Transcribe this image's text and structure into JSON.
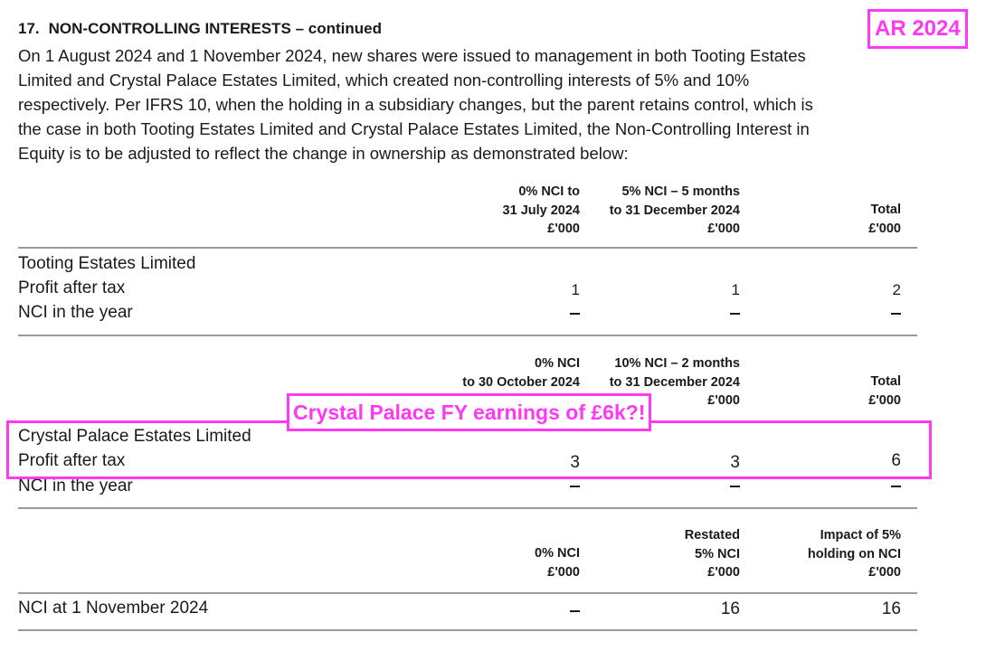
{
  "section": {
    "number": "17.",
    "title": "NON-CONTROLLING INTERESTS – continued"
  },
  "paragraph": [
    "On 1 August 2024 and 1 November 2024, new shares were issued to management in both Tooting Estates",
    "Limited and Crystal Palace Estates Limited, which created non-controlling interests of 5% and 10%",
    "respectively. Per IFRS 10, when the holding in a subsidiary changes, but the parent retains control, which is",
    "the case in both Tooting Estates Limited and Crystal Palace Estates Limited, the Non-Controlling Interest in",
    "Equity is to be adjusted to reflect the change in ownership as demonstrated below:"
  ],
  "annotations": {
    "ar_tag": "AR 2024",
    "highlight_label": "Crystal Palace FY earnings of £6k?!",
    "accent_color": "#ff38f4"
  },
  "tables": [
    {
      "headers": [
        [
          "0% NCI to",
          "31 July 2024",
          "£'000"
        ],
        [
          "5% NCI – 5 months",
          "to 31 December 2024",
          "£'000"
        ],
        [
          "Total",
          "£'000"
        ]
      ],
      "company": "Tooting Estates Limited",
      "rows": [
        {
          "label": "Profit after tax",
          "values": [
            "1",
            "1",
            "2"
          ]
        },
        {
          "label": "NCI in the year",
          "values": [
            "–",
            "–",
            "–"
          ]
        }
      ]
    },
    {
      "headers": [
        [
          "0% NCI",
          "to 30 October 2024"
        ],
        [
          "10% NCI – 2 months",
          "to 31 December 2024",
          "£'000"
        ],
        [
          "Total",
          "£'000"
        ]
      ],
      "company": "Crystal Palace Estates Limited",
      "rows": [
        {
          "label": "Profit after tax",
          "values": [
            "3",
            "3",
            "6"
          ]
        },
        {
          "label": "NCI in the year",
          "values": [
            "–",
            "–",
            "–"
          ]
        }
      ]
    },
    {
      "headers": [
        [
          "0% NCI",
          "£'000"
        ],
        [
          "Restated",
          "5% NCI",
          "£'000"
        ],
        [
          "Impact of 5%",
          "holding on NCI",
          "£'000"
        ]
      ],
      "rows": [
        {
          "label": "NCI at 1 November 2024",
          "values": [
            "–",
            "16",
            "16"
          ]
        }
      ]
    }
  ]
}
